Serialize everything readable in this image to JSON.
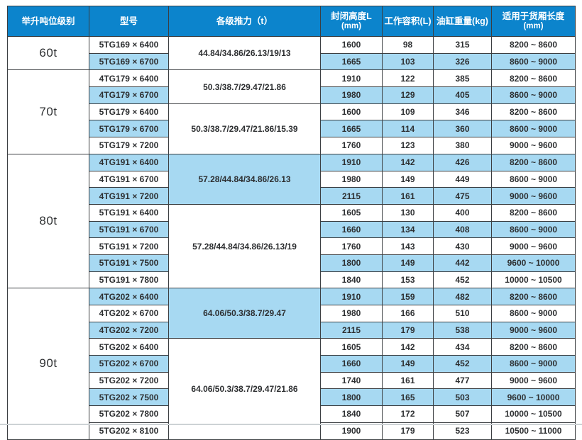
{
  "colors": {
    "header_bg": "#0c84cc",
    "header_text": "#ffffff",
    "shade": "#a7d9f2",
    "row_bg": "#ffffff",
    "border": "#3b3e41",
    "text": "#2d2f31"
  },
  "table": {
    "columns": [
      {
        "label": "举升吨位级别",
        "sub": ""
      },
      {
        "label": "型号",
        "sub": ""
      },
      {
        "label": "各级推力（t）",
        "sub": ""
      },
      {
        "label": "封闭高度L",
        "sub": "(mm)"
      },
      {
        "label": "工作容积(L)",
        "sub": ""
      },
      {
        "label": "油缸重量(kg)",
        "sub": ""
      },
      {
        "label": "适用于货厢长度",
        "sub": "(mm)"
      }
    ],
    "groups": [
      {
        "tonnage": "60t",
        "subgroups": [
          {
            "thrust": "44.84/34.86/26.13/19/13",
            "thrust_shaded": false,
            "rows": [
              {
                "model": "5TG169 × 6400",
                "height": "1600",
                "volume": "98",
                "weight": "315",
                "range": "8200 ~ 8600",
                "shaded": false
              },
              {
                "model": "5TG169 × 6700",
                "height": "1665",
                "volume": "103",
                "weight": "326",
                "range": "8600 ~ 9000",
                "shaded": true
              }
            ]
          }
        ]
      },
      {
        "tonnage": "70t",
        "subgroups": [
          {
            "thrust": "50.3/38.7/29.47/21.86",
            "thrust_shaded": false,
            "rows": [
              {
                "model": "4TG179 × 6400",
                "height": "1910",
                "volume": "122",
                "weight": "385",
                "range": "8200 ~ 8600",
                "shaded": false
              },
              {
                "model": "4TG179 × 6700",
                "height": "1980",
                "volume": "129",
                "weight": "405",
                "range": "8600 ~ 9000",
                "shaded": true
              }
            ]
          },
          {
            "thrust": "50.3/38.7/29.47/21.86/15.39",
            "thrust_shaded": false,
            "rows": [
              {
                "model": "5TG179 × 6400",
                "height": "1600",
                "volume": "109",
                "weight": "346",
                "range": "8200 ~ 8600",
                "shaded": false
              },
              {
                "model": "5TG179 × 6700",
                "height": "1665",
                "volume": "114",
                "weight": "360",
                "range": "8600 ~ 9000",
                "shaded": true
              },
              {
                "model": "5TG179 × 7200",
                "height": "1760",
                "volume": "123",
                "weight": "380",
                "range": "9000 ~ 9600",
                "shaded": false
              }
            ]
          }
        ]
      },
      {
        "tonnage": "80t",
        "subgroups": [
          {
            "thrust": "57.28/44.84/34.86/26.13",
            "thrust_shaded": true,
            "rows": [
              {
                "model": "4TG191 × 6400",
                "height": "1910",
                "volume": "142",
                "weight": "426",
                "range": "8200 ~ 8600",
                "shaded": true
              },
              {
                "model": "4TG191 × 6700",
                "height": "1980",
                "volume": "149",
                "weight": "449",
                "range": "8600 ~ 9000",
                "shaded": false
              },
              {
                "model": "4TG191 × 7200",
                "height": "2115",
                "volume": "161",
                "weight": "475",
                "range": "9000 ~ 9600",
                "shaded": true
              }
            ]
          },
          {
            "thrust": "57.28/44.84/34.86/26.13/19",
            "thrust_shaded": false,
            "rows": [
              {
                "model": "5TG191 × 6400",
                "height": "1605",
                "volume": "130",
                "weight": "400",
                "range": "8200 ~ 8600",
                "shaded": false
              },
              {
                "model": "5TG191 × 6700",
                "height": "1660",
                "volume": "134",
                "weight": "408",
                "range": "8600 ~ 9000",
                "shaded": true
              },
              {
                "model": "5TG191 × 7200",
                "height": "1760",
                "volume": "143",
                "weight": "430",
                "range": "9000 ~ 9600",
                "shaded": false
              },
              {
                "model": "5TG191 × 7500",
                "height": "1800",
                "volume": "149",
                "weight": "442",
                "range": "9600 ~ 10000",
                "shaded": true
              },
              {
                "model": "5TG191 × 7800",
                "height": "1840",
                "volume": "153",
                "weight": "452",
                "range": "10000 ~ 10500",
                "shaded": false
              }
            ]
          }
        ]
      },
      {
        "tonnage": "90t",
        "subgroups": [
          {
            "thrust": "64.06/50.3/38.7/29.47",
            "thrust_shaded": true,
            "rows": [
              {
                "model": "4TG202 × 6400",
                "height": "1910",
                "volume": "159",
                "weight": "482",
                "range": "8200 ~ 8600",
                "shaded": true
              },
              {
                "model": "4TG202 × 6700",
                "height": "1980",
                "volume": "166",
                "weight": "510",
                "range": "8600 ~ 9000",
                "shaded": false
              },
              {
                "model": "4TG202 × 7200",
                "height": "2115",
                "volume": "179",
                "weight": "538",
                "range": "9000 ~ 9600",
                "shaded": true
              }
            ]
          },
          {
            "thrust": "64.06/50.3/38.7/29.47/21.86",
            "thrust_shaded": false,
            "rows": [
              {
                "model": "5TG202 × 6400",
                "height": "1605",
                "volume": "142",
                "weight": "434",
                "range": "8200 ~ 8600",
                "shaded": false
              },
              {
                "model": "5TG202 × 6700",
                "height": "1660",
                "volume": "149",
                "weight": "452",
                "range": "8600 ~ 9000",
                "shaded": true
              },
              {
                "model": "5TG202 × 7200",
                "height": "1740",
                "volume": "161",
                "weight": "477",
                "range": "9000 ~ 9600",
                "shaded": false
              },
              {
                "model": "5TG202 × 7500",
                "height": "1800",
                "volume": "165",
                "weight": "503",
                "range": "9600 ~ 10000",
                "shaded": true
              },
              {
                "model": "5TG202 × 7800",
                "height": "1840",
                "volume": "172",
                "weight": "507",
                "range": "10000 ~ 10500",
                "shaded": false
              },
              {
                "model": "5TG202 × 8100",
                "height": "1900",
                "volume": "179",
                "weight": "523",
                "range": "10500 ~ 11000",
                "shaded": false
              }
            ]
          }
        ]
      }
    ]
  }
}
